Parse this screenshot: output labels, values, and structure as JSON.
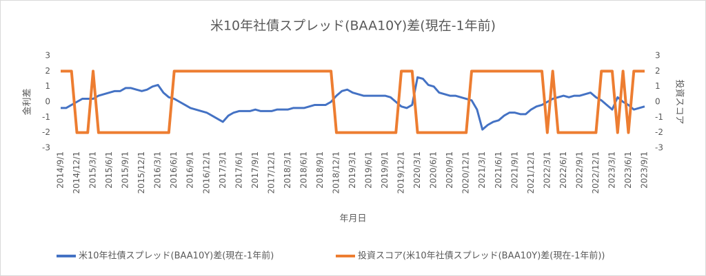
{
  "chart_data": {
    "type": "line",
    "title": "米10年社債スプレッド(BAA10Y)差(現在-1年前)",
    "ylabel": "金利差",
    "y2label": "投資スコア",
    "xlabel": "年月日",
    "categories": [
      "2014/9/1",
      null,
      null,
      "2014/12/1",
      null,
      null,
      "2015/3/1",
      null,
      null,
      "2015/6/1",
      null,
      null,
      "2015/9/1",
      null,
      null,
      "2015/12/1",
      null,
      null,
      "2016/3/1",
      null,
      null,
      "2016/6/1",
      null,
      null,
      "2016/9/1",
      null,
      null,
      "2016/12/1",
      null,
      null,
      "2017/3/1",
      null,
      null,
      "2017/6/1",
      null,
      null,
      "2017/9/1",
      null,
      null,
      "2017/12/1",
      null,
      null,
      "2018/3/1",
      null,
      null,
      "2018/6/1",
      null,
      null,
      "2018/9/1",
      null,
      null,
      "2018/12/1",
      null,
      null,
      "2019/3/1",
      null,
      null,
      "2019/6/1",
      null,
      null,
      "2019/9/1",
      null,
      null,
      "2019/12/1",
      null,
      null,
      "2020/3/1",
      null,
      null,
      "2020/6/1",
      null,
      null,
      "2020/9/1",
      null,
      null,
      "2020/12/1",
      null,
      null,
      "2021/3/1",
      null,
      null,
      "2021/6/1",
      null,
      null,
      "2021/9/1",
      null,
      null,
      "2021/12/1",
      null,
      null,
      "2022/3/1",
      null,
      null,
      "2022/6/1",
      null,
      null,
      "2022/9/1",
      null,
      null,
      "2022/12/1",
      null,
      null,
      "2023/3/1",
      null,
      null,
      "2023/6/1",
      null,
      null,
      "2023/9/1"
    ],
    "series": [
      {
        "name": "米10年社債スプレッド(BAA10Y)差(現在-1年前)",
        "color": "#4472c4",
        "values": [
          -0.4,
          -0.4,
          -0.2,
          0.0,
          0.2,
          0.2,
          0.2,
          0.4,
          0.5,
          0.6,
          0.7,
          0.7,
          0.9,
          0.9,
          0.8,
          0.7,
          0.8,
          1.0,
          1.1,
          0.6,
          0.3,
          0.2,
          0.0,
          -0.2,
          -0.4,
          -0.5,
          -0.6,
          -0.7,
          -0.9,
          -1.1,
          -1.3,
          -0.9,
          -0.7,
          -0.6,
          -0.6,
          -0.6,
          -0.5,
          -0.6,
          -0.6,
          -0.6,
          -0.5,
          -0.5,
          -0.5,
          -0.4,
          -0.4,
          -0.4,
          -0.3,
          -0.2,
          -0.2,
          -0.2,
          0.0,
          0.4,
          0.7,
          0.8,
          0.6,
          0.5,
          0.4,
          0.4,
          0.4,
          0.4,
          0.4,
          0.3,
          0.0,
          -0.3,
          -0.4,
          -0.2,
          1.6,
          1.5,
          1.1,
          1.0,
          0.6,
          0.5,
          0.4,
          0.4,
          0.3,
          0.2,
          0.1,
          -0.5,
          -1.8,
          -1.5,
          -1.3,
          -1.2,
          -0.9,
          -0.7,
          -0.7,
          -0.8,
          -0.8,
          -0.5,
          -0.3,
          -0.2,
          0.0,
          0.2,
          0.3,
          0.4,
          0.3,
          0.4,
          0.4,
          0.5,
          0.6,
          0.3,
          0.1,
          -0.2,
          -0.5,
          0.3,
          0.0,
          -0.2,
          -0.5,
          -0.4,
          -0.3
        ]
      },
      {
        "name": "投資スコア(米10年社債スプレッド(BAA10Y)差(現在-1年前))",
        "color": "#ed7d31",
        "axis": "y2",
        "values": [
          2,
          2,
          2,
          -2,
          -2,
          -2,
          2,
          -2,
          -2,
          -2,
          -2,
          -2,
          -2,
          -2,
          -2,
          -2,
          -2,
          -2,
          -2,
          -2,
          -2,
          2,
          2,
          2,
          2,
          2,
          2,
          2,
          2,
          2,
          2,
          2,
          2,
          2,
          2,
          2,
          2,
          2,
          2,
          2,
          2,
          2,
          2,
          2,
          2,
          2,
          2,
          2,
          2,
          2,
          2,
          -2,
          -2,
          -2,
          -2,
          -2,
          -2,
          -2,
          -2,
          -2,
          -2,
          -2,
          -2,
          2,
          2,
          2,
          -2,
          -2,
          -2,
          -2,
          -2,
          -2,
          -2,
          -2,
          -2,
          -2,
          2,
          2,
          2,
          2,
          2,
          2,
          2,
          2,
          2,
          2,
          2,
          2,
          2,
          2,
          -2,
          2,
          -2,
          -2,
          -2,
          -2,
          -2,
          -2,
          -2,
          -2,
          2,
          2,
          2,
          -2,
          2,
          -2,
          2,
          2,
          2
        ]
      }
    ],
    "ylim": [
      -3,
      3
    ],
    "yticks": [
      -3,
      -2,
      -1,
      0,
      1,
      2,
      3
    ],
    "y2lim": [
      -3,
      3
    ],
    "y2ticks": [
      -3,
      -2,
      -1,
      0,
      1,
      2,
      3
    ],
    "legend": "bottom"
  }
}
